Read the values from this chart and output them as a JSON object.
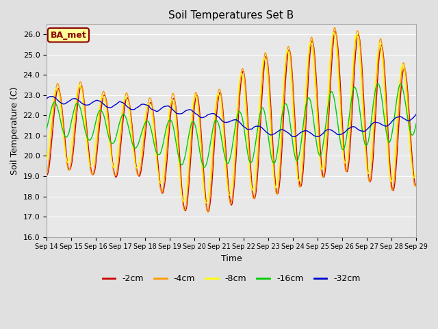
{
  "title": "Soil Temperatures Set B",
  "xlabel": "Time",
  "ylabel": "Soil Temperature (C)",
  "ylim": [
    16.0,
    26.5
  ],
  "yticks": [
    16.0,
    17.0,
    18.0,
    19.0,
    20.0,
    21.0,
    22.0,
    23.0,
    24.0,
    25.0,
    26.0
  ],
  "fig_bg": "#e0e0e0",
  "plot_bg": "#e8e8e8",
  "grid_color": "#ffffff",
  "legend_label": "BA_met",
  "series_colors": {
    "-2cm": "#cc0000",
    "-4cm": "#ff9900",
    "-8cm": "#ffff00",
    "-16cm": "#00cc00",
    "-32cm": "#0000cc"
  },
  "x_tick_labels": [
    "Sep 14",
    "Sep 15",
    "Sep 16",
    "Sep 17",
    "Sep 18",
    "Sep 19",
    "Sep 20",
    "Sep 21",
    "Sep 22",
    "Sep 23",
    "Sep 24",
    "Sep 25",
    "Sep 26",
    "Sep 27",
    "Sep 28",
    "Sep 29"
  ],
  "n_days": 16,
  "ppd": 48,
  "seed": 7
}
